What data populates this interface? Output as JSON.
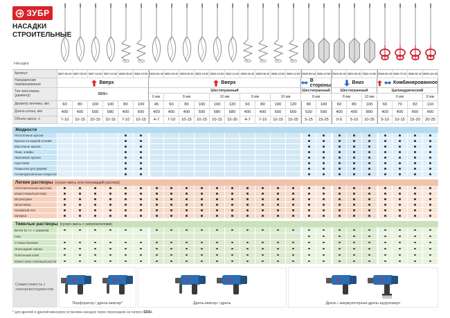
{
  "brand": {
    "logo_text": "ЗУБР",
    "title_line1": "НАСАДКИ",
    "title_line2": "СТРОИТЕЛЬНЫЕ"
  },
  "colors": {
    "brand_red": "#d8232a",
    "arrow_blue": "#2a6db5",
    "liquids_bg": "#dfeffa",
    "light_mortar_bg": "#fae5d9",
    "heavy_mortar_bg": "#e8f3df"
  },
  "row_labels": {
    "nozzle": "Насадка",
    "article": "Артикул",
    "direction": "Направление перемешивания",
    "shank": "Тип хвостовика (диаметр)",
    "diameter": "Диаметр венчика, мм",
    "length": "Длина штока, мм",
    "volume": "Объем смеси, л"
  },
  "groups": [
    {
      "label": "Вверх",
      "arrows": [
        "up-arrow-icon"
      ],
      "cols": 6,
      "shank": "SDS+",
      "full_shank": true,
      "subs": []
    },
    {
      "label": "Вверх",
      "arrows": [
        "up-arrow-icon"
      ],
      "cols": 10,
      "shank": "Шестигранный",
      "subs": [
        {
          "label": "6 мм",
          "cols": 1
        },
        {
          "label": "8 мм",
          "cols": 3
        },
        {
          "label": "10 мм",
          "cols": 2
        },
        {
          "label": "8 мм",
          "cols": 2
        },
        {
          "label": "10 мм",
          "cols": 2
        }
      ]
    },
    {
      "label": "В стороны",
      "arrows": [
        "side-arrow-icon"
      ],
      "cols": 2,
      "shank": "Шестигранный",
      "subs": [
        {
          "label": "8 мм",
          "cols": 2
        }
      ]
    },
    {
      "label": "Вниз",
      "arrows": [
        "down-arrow-icon"
      ],
      "cols": 3,
      "shank": "Шестигранный",
      "subs": [
        {
          "label": "8 мм",
          "cols": 2
        },
        {
          "label": "10 мм",
          "cols": 1
        }
      ]
    },
    {
      "label": "Комбинированное",
      "arrows": [
        "up-arrow-icon",
        "side-arrow-icon"
      ],
      "cols": 4,
      "shank": "Цилиндрический",
      "subs": [
        {
          "label": "6 мм",
          "cols": 3
        },
        {
          "label": "8 мм",
          "cols": 1
        }
      ]
    }
  ],
  "columns": [
    {
      "article": "0607-06-40",
      "diameter": "60",
      "length": "400",
      "volume": "7-10",
      "shape": "whisk"
    },
    {
      "article": "0607-08-40",
      "diameter": "80",
      "length": "400",
      "volume": "10-15",
      "shape": "whisk"
    },
    {
      "article": "0607-10-50",
      "diameter": "100",
      "length": "500",
      "volume": "10-15",
      "shape": "whisk"
    },
    {
      "article": "0607-10-60",
      "diameter": "100",
      "length": "580",
      "volume": "10-15",
      "shape": "whisk"
    },
    {
      "article": "0606-08-40",
      "diameter": "80",
      "length": "400",
      "volume": "7-10",
      "shape": "spiral"
    },
    {
      "article": "0606-10-60",
      "diameter": "100",
      "length": "600",
      "volume": "10-15",
      "shape": "spiral"
    },
    {
      "article": "0603-04-40",
      "diameter": "45",
      "length": "400",
      "volume": "4-7",
      "shape": "whisk"
    },
    {
      "article": "0603-06-40",
      "diameter": "60",
      "length": "400",
      "volume": "7-10",
      "shape": "whisk"
    },
    {
      "article": "0603-08-40",
      "diameter": "80",
      "length": "400",
      "volume": "10-15",
      "shape": "whisk"
    },
    {
      "article": "0603-10-50",
      "diameter": "100",
      "length": "500",
      "volume": "10-15",
      "shape": "whisk"
    },
    {
      "article": "0603-10-60",
      "diameter": "100",
      "length": "580",
      "volume": "10-15",
      "shape": "whisk"
    },
    {
      "article": "0603-12-60",
      "diameter": "120",
      "length": "680",
      "volume": "15-30",
      "shape": "whisk"
    },
    {
      "article": "0605-06-40",
      "diameter": "60",
      "length": "400",
      "volume": "4-7",
      "shape": "spiral"
    },
    {
      "article": "0605-08-40",
      "diameter": "80",
      "length": "400",
      "volume": "7-10",
      "shape": "spiral"
    },
    {
      "article": "0605-10-60",
      "diameter": "100",
      "length": "600",
      "volume": "10-15",
      "shape": "spiral"
    },
    {
      "article": "0605-12-60",
      "diameter": "120",
      "length": "600",
      "volume": "15-25",
      "shape": "spiral"
    },
    {
      "article": "0605-08-53",
      "diameter": "80",
      "length": "530",
      "volume": "5-15",
      "shape": "paddle"
    },
    {
      "article": "0605-10-59",
      "diameter": "100",
      "length": "590",
      "volume": "15-25",
      "shape": "paddle"
    },
    {
      "article": "0602-06-40",
      "diameter": "60",
      "length": "400",
      "volume": "0-5",
      "shape": "paddle"
    },
    {
      "article": "0602-08-40",
      "diameter": "80",
      "length": "400",
      "volume": "5-10",
      "shape": "paddle"
    },
    {
      "article": "0602-10-80",
      "diameter": "100",
      "length": "800",
      "volume": "10-25",
      "shape": "paddle"
    },
    {
      "article": "0606-66-40",
      "diameter": "66",
      "length": "400",
      "volume": "5-10",
      "shape": "red"
    },
    {
      "article": "0606-70-40",
      "diameter": "70",
      "length": "400",
      "volume": "10-15",
      "shape": "red"
    },
    {
      "article": "0606-82-40",
      "diameter": "82",
      "length": "400",
      "volume": "15-20",
      "shape": "red"
    },
    {
      "article": "0608-110-40",
      "diameter": "110",
      "length": "400",
      "volume": "20-25",
      "shape": "red"
    }
  ],
  "sections": [
    {
      "id": "liquids",
      "title": "Жидкости",
      "subtitle": "",
      "rows": [
        {
          "label": "Потолочные краски",
          "dots": [
            5,
            6,
            17,
            18,
            19,
            20,
            21,
            22,
            23,
            24,
            25
          ]
        },
        {
          "label": "Краски на водной основе",
          "dots": [
            5,
            6,
            17,
            18,
            19,
            20,
            21,
            22,
            23,
            24,
            25
          ]
        },
        {
          "label": "Масляные краски",
          "dots": [
            5,
            6,
            17,
            18,
            19,
            20,
            21,
            22,
            23,
            24,
            25
          ]
        },
        {
          "label": "Лаки, олифы",
          "dots": [
            5,
            6,
            17,
            18,
            19,
            20,
            21,
            22,
            23,
            24,
            25
          ]
        },
        {
          "label": "Эмалевые краски",
          "dots": [
            5,
            6,
            17,
            18,
            19,
            20,
            21,
            22,
            23,
            24,
            25
          ]
        },
        {
          "label": "Грунтовки",
          "dots": [
            5,
            6,
            17,
            18,
            19,
            20,
            21,
            22,
            23,
            24,
            25
          ]
        },
        {
          "label": "Покрытия для дерева",
          "dots": [
            5,
            6,
            17,
            18,
            19,
            20,
            21,
            22,
            23,
            24,
            25
          ]
        },
        {
          "label": "Антикоррозионные покрытия",
          "dots": [
            5,
            6,
            17,
            18,
            19,
            20,
            21,
            22,
            23,
            24,
            25
          ]
        }
      ]
    },
    {
      "id": "light",
      "title": "Легкие растворы",
      "subtitle": "(сухая смесь или полужидкий раствор)",
      "rows": [
        {
          "label": "Уплотнительная мастика",
          "dots": [
            1,
            2,
            3,
            4,
            5,
            6,
            7,
            8,
            9,
            10,
            11,
            12,
            13,
            14,
            15,
            16,
            17,
            18,
            19,
            20,
            21,
            22,
            23,
            24,
            25
          ]
        },
        {
          "label": "Известковый раствор",
          "dots": [
            1,
            2,
            3,
            4,
            5,
            6,
            7,
            8,
            9,
            10,
            11,
            12,
            13,
            14,
            15,
            16,
            17,
            18,
            19,
            20,
            21,
            22,
            23,
            24,
            25
          ]
        },
        {
          "label": "Штукатурка",
          "dots": [
            1,
            2,
            3,
            4,
            5,
            6,
            7,
            8,
            9,
            10,
            11,
            12,
            13,
            14,
            15,
            16,
            17,
            18,
            19,
            20,
            21,
            22,
            23,
            24,
            25
          ]
        },
        {
          "label": "Шпатлевка",
          "dots": [
            1,
            2,
            3,
            4,
            5,
            6,
            7,
            8,
            9,
            10,
            11,
            12,
            13,
            14,
            15,
            16,
            17,
            18,
            19,
            20,
            21,
            22,
            23,
            24,
            25
          ]
        },
        {
          "label": "Наливной пол",
          "dots": [
            1,
            2,
            3,
            4,
            5,
            6,
            7,
            8,
            9,
            10,
            11,
            12,
            13,
            14,
            15,
            16,
            17,
            18,
            19,
            20,
            21,
            22,
            23,
            24,
            25
          ]
        },
        {
          "label": "Затирка",
          "dots": [
            1,
            2,
            3,
            4,
            5,
            6,
            7,
            8,
            9,
            10,
            11,
            12,
            13,
            14,
            15,
            16,
            17,
            18,
            19,
            20,
            21,
            22,
            23,
            24,
            25
          ]
        }
      ]
    },
    {
      "id": "heavy",
      "title": "Тяжелые растворы",
      "subtitle": "(сухая смесь с наполнителями)",
      "rows": [
        {
          "label": "Бетон (в т.ч. с гравием)",
          "dots": [
            1,
            2,
            3,
            4,
            5,
            6,
            7,
            8,
            9,
            10,
            11,
            12,
            13,
            14,
            15,
            16,
            17,
            18,
            19,
            20,
            21,
            22,
            23,
            24,
            25
          ]
        },
        {
          "label": "Гипс",
          "dots": [
            17,
            18,
            19,
            20,
            21,
            22,
            23,
            24,
            25
          ]
        },
        {
          "label": "Стяжка базовая",
          "dots": [
            1,
            2,
            3,
            4,
            5,
            6,
            7,
            8,
            9,
            10,
            11,
            12,
            13,
            14,
            15,
            16,
            17,
            18,
            19,
            20,
            21,
            22,
            23,
            24,
            25
          ]
        },
        {
          "label": "Эпоксидная смола",
          "dots": [
            1,
            2,
            3,
            4,
            5,
            6,
            7,
            8,
            9,
            10,
            11,
            12,
            13,
            14,
            15,
            16,
            17,
            18,
            19,
            20,
            21,
            22,
            23,
            24,
            25
          ]
        },
        {
          "label": "Плиточный клей",
          "dots": [
            1,
            2,
            3,
            4,
            5,
            6,
            7,
            8,
            9,
            10,
            11,
            12,
            13,
            14,
            15,
            16,
            17,
            18,
            19,
            20,
            21,
            22,
            23,
            24,
            25
          ]
        },
        {
          "label": "Известково-глиняный раствор",
          "dots": [
            1,
            2,
            3,
            4,
            5,
            6,
            7,
            8,
            9,
            10,
            11,
            12,
            13,
            14,
            15,
            16,
            17,
            18,
            19,
            20,
            21,
            22,
            23,
            24,
            25
          ]
        }
      ]
    }
  ],
  "compat": {
    "label": "Совместимость с электроинструментом",
    "sections": [
      {
        "caption": "Перфоратор / дрель-миксер*",
        "tools": [
          "perforator",
          "mixer-drill"
        ]
      },
      {
        "caption": "Дрель-миксер / дрель",
        "tools": [
          "mixer-drill",
          "drill"
        ]
      },
      {
        "caption": "Дрель / аккумуляторная дрель-шуруповерт",
        "tools": [
          "drill",
          "cordless-screwdriver"
        ]
      }
    ]
  },
  "footnote": {
    "text": "* для дрелей и дрелей-миксеров установка насадок через переходник на патрон",
    "bold": "SDS+"
  }
}
